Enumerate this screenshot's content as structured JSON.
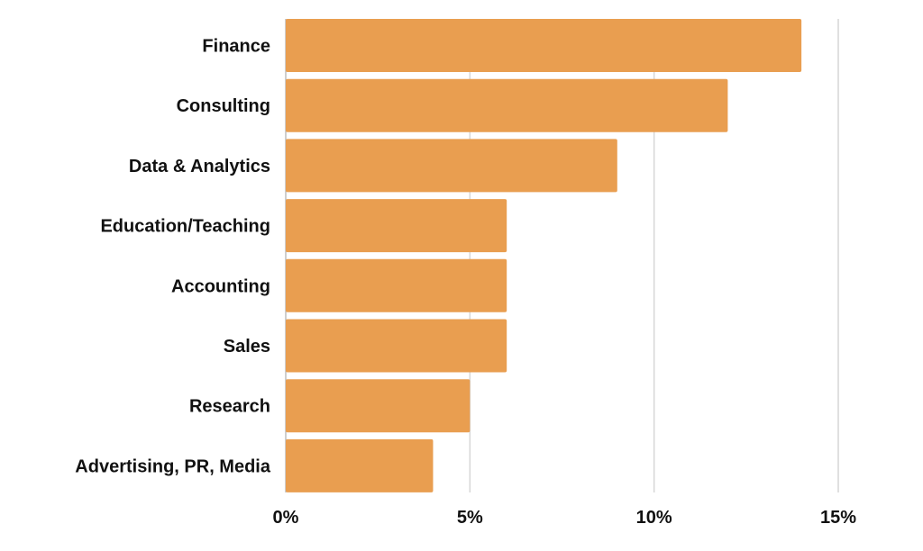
{
  "chart_data": {
    "type": "bar",
    "orientation": "horizontal",
    "categories": [
      "Finance",
      "Consulting",
      "Data & Analytics",
      "Education/Teaching",
      "Accounting",
      "Sales",
      "Research",
      "Advertising, PR, Media"
    ],
    "values": [
      14,
      12,
      9,
      6,
      6,
      6,
      5,
      4
    ],
    "unit": "%",
    "xlim": [
      0,
      15
    ],
    "x_ticks": [
      0,
      5,
      10,
      15
    ],
    "x_tick_labels": [
      "0%",
      "5%",
      "10%",
      "15%"
    ],
    "title": "",
    "xlabel": "",
    "ylabel": "",
    "grid": "vertical",
    "legend": "none",
    "bar_color": "#E99E50"
  }
}
